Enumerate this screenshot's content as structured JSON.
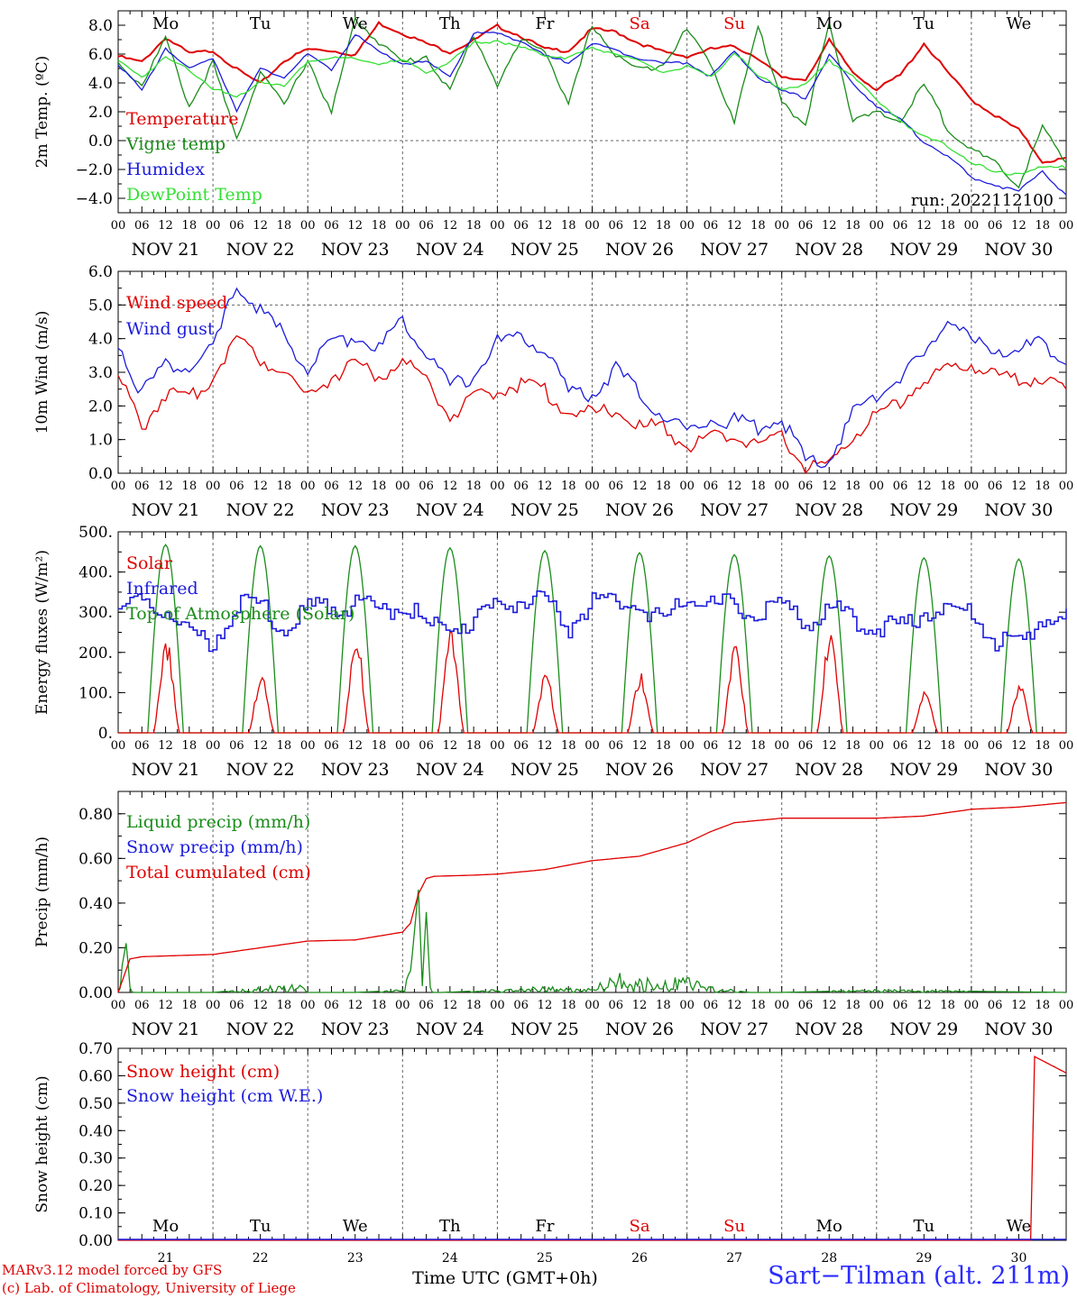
{
  "run_label": "run: 2022112100",
  "days": [
    "NOV 21",
    "NOV 22",
    "NOV 23",
    "NOV 24",
    "NOV 25",
    "NOV 26",
    "NOV 27",
    "NOV 28",
    "NOV 29",
    "NOV 30"
  ],
  "weekdays": [
    {
      "name": "Mo",
      "weekend": false
    },
    {
      "name": "Tu",
      "weekend": false
    },
    {
      "name": "We",
      "weekend": false
    },
    {
      "name": "Th",
      "weekend": false
    },
    {
      "name": "Fr",
      "weekend": false
    },
    {
      "name": "Sa",
      "weekend": true
    },
    {
      "name": "Su",
      "weekend": true
    },
    {
      "name": "Mo",
      "weekend": false
    },
    {
      "name": "Tu",
      "weekend": false
    },
    {
      "name": "We",
      "weekend": false
    }
  ],
  "day_numbers": [
    "21",
    "22",
    "23",
    "24",
    "25",
    "26",
    "27",
    "28",
    "29",
    "30"
  ],
  "hour_ticks": [
    "00",
    "06",
    "12",
    "18"
  ],
  "x_axis_title": "Time UTC (GMT+0h)",
  "credit_line1": "MARv3.12 model forced by GFS",
  "credit_line2": "(c) Lab. of Climatology, University of Liege",
  "station": "Sart−Tilman (alt. 211m)",
  "colors": {
    "red": "#e00000",
    "green": "#1a8c1a",
    "blue": "#1c1cdc",
    "lightgreen": "#33e033",
    "weekend": "#e00000"
  },
  "chart_data": [
    {
      "type": "line",
      "ylabel": "2m Temp. (ºC)",
      "ylim": [
        -5,
        9
      ],
      "yticks": [
        "−4.0",
        "−2.0",
        "0.0",
        "2.0",
        "4.0",
        "6.0",
        "8.0"
      ],
      "ytick_values": [
        -4,
        -2,
        0,
        2,
        4,
        6,
        8
      ],
      "reference_line": 0,
      "x_hours": [
        0,
        6,
        12,
        18,
        24,
        30,
        36,
        42,
        48,
        54,
        60,
        66,
        72,
        78,
        84,
        90,
        96,
        102,
        108,
        114,
        120,
        126,
        132,
        138,
        144,
        150,
        156,
        162,
        168,
        174,
        180,
        186,
        192,
        198,
        204,
        210,
        216,
        222,
        228,
        234,
        240
      ],
      "series": [
        {
          "name": "Temperature",
          "color": "red",
          "values": [
            5.9,
            5.5,
            7.2,
            6.1,
            6.3,
            5.0,
            4.0,
            5.6,
            6.4,
            6.3,
            6.0,
            8.2,
            7.5,
            6.8,
            6.2,
            7.0,
            8.0,
            7.3,
            6.4,
            6.3,
            7.8,
            7.6,
            6.8,
            6.2,
            5.9,
            6.4,
            6.6,
            5.8,
            4.4,
            4.3,
            7.0,
            4.8,
            3.6,
            4.6,
            6.8,
            4.8,
            2.9,
            1.8,
            0.8,
            -1.4,
            -1.2
          ]
        },
        {
          "name": "Vigne temp",
          "color": "green",
          "values": [
            5.5,
            4.0,
            7.2,
            2.5,
            5.5,
            0.2,
            5.0,
            2.5,
            5.8,
            2.0,
            8.5,
            7.0,
            5.5,
            6.0,
            3.5,
            7.5,
            4.0,
            7.0,
            6.5,
            2.5,
            8.2,
            6.0,
            5.0,
            5.5,
            7.8,
            5.5,
            1.5,
            8.0,
            3.0,
            1.0,
            8.5,
            1.5,
            2.0,
            1.5,
            4.0,
            1.0,
            -0.5,
            -1.5,
            -3.0,
            1.0,
            -1.4
          ]
        },
        {
          "name": "Humidex",
          "color": "blue",
          "values": [
            5.4,
            3.5,
            6.5,
            5.0,
            5.8,
            2.2,
            5.0,
            4.5,
            6.0,
            5.0,
            7.4,
            6.2,
            5.4,
            5.5,
            4.5,
            7.5,
            7.5,
            7.0,
            5.9,
            5.5,
            6.8,
            6.3,
            5.8,
            5.4,
            5.5,
            4.5,
            6.2,
            4.5,
            3.5,
            3.0,
            6.0,
            4.0,
            2.5,
            1.5,
            0.0,
            -1.0,
            -2.5,
            -3.0,
            -3.5,
            -2.0,
            -3.8
          ]
        },
        {
          "name": "DewPoint Temp",
          "color": "lightgreen",
          "values": [
            5.6,
            4.5,
            5.8,
            5.0,
            3.7,
            3.0,
            4.2,
            3.8,
            5.6,
            5.8,
            5.7,
            5.4,
            5.6,
            4.8,
            5.5,
            6.8,
            7.0,
            6.5,
            6.0,
            5.8,
            6.5,
            6.1,
            5.5,
            4.8,
            5.2,
            4.4,
            6.2,
            4.5,
            3.7,
            3.9,
            5.6,
            4.6,
            2.8,
            1.5,
            0.3,
            -0.3,
            -1.4,
            -2.2,
            -2.2,
            -1.8,
            -1.8
          ]
        }
      ]
    },
    {
      "type": "line",
      "ylabel": "10m Wind (m/s)",
      "ylim": [
        0,
        6
      ],
      "yticks": [
        "0.0",
        "1.0",
        "2.0",
        "3.0",
        "4.0",
        "5.0",
        "6.0"
      ],
      "ytick_values": [
        0,
        1,
        2,
        3,
        4,
        5,
        6
      ],
      "reference_line": 5,
      "x_hours": [
        0,
        6,
        12,
        18,
        24,
        30,
        36,
        42,
        48,
        54,
        60,
        66,
        72,
        78,
        84,
        90,
        96,
        102,
        108,
        114,
        120,
        126,
        132,
        138,
        144,
        150,
        156,
        162,
        168,
        174,
        180,
        186,
        192,
        198,
        204,
        210,
        216,
        222,
        228,
        234,
        240
      ],
      "series": [
        {
          "name": "Wind speed",
          "color": "red",
          "values": [
            3.0,
            1.5,
            2.5,
            2.3,
            3.0,
            4.2,
            3.5,
            3.2,
            2.4,
            3.0,
            3.4,
            3.0,
            3.4,
            3.0,
            1.8,
            2.3,
            2.6,
            2.8,
            2.6,
            1.9,
            1.9,
            2.0,
            1.5,
            1.5,
            0.9,
            1.2,
            1.2,
            1.0,
            1.2,
            0.3,
            0.3,
            1.3,
            1.8,
            2.3,
            2.9,
            3.2,
            3.4,
            3.0,
            2.9,
            3.0,
            2.6
          ]
        },
        {
          "name": "Wind gust",
          "color": "blue",
          "values": [
            4.0,
            2.5,
            3.4,
            3.2,
            3.8,
            5.7,
            5.0,
            4.2,
            3.2,
            4.0,
            4.2,
            3.8,
            4.7,
            3.8,
            2.7,
            3.0,
            4.0,
            4.2,
            3.8,
            2.5,
            2.5,
            3.2,
            2.5,
            1.8,
            1.4,
            1.7,
            1.7,
            1.5,
            1.7,
            0.5,
            0.5,
            1.9,
            2.4,
            3.0,
            3.6,
            4.8,
            4.0,
            3.8,
            3.8,
            4.0,
            3.4
          ]
        }
      ]
    },
    {
      "type": "line",
      "ylabel": "Energy fluxes (W/m²)",
      "ylim": [
        0,
        500
      ],
      "yticks": [
        "0.",
        "100.",
        "200.",
        "300.",
        "400.",
        "500."
      ],
      "ytick_values": [
        0,
        100,
        200,
        300,
        400,
        500
      ],
      "solar_peaks": [
        235,
        145,
        250,
        265,
        150,
        150,
        230,
        260,
        110,
        125
      ],
      "toa_peaks": [
        468,
        465,
        465,
        460,
        453,
        448,
        443,
        440,
        435,
        432
      ],
      "daylight_hours": [
        7.5,
        16.5
      ],
      "series": [
        {
          "name": "Solar",
          "color": "red",
          "values": []
        },
        {
          "name": "Infrared",
          "color": "blue",
          "x_hours": [
            0,
            6,
            12,
            18,
            24,
            30,
            36,
            42,
            48,
            54,
            60,
            66,
            72,
            78,
            84,
            90,
            96,
            102,
            108,
            114,
            120,
            126,
            132,
            138,
            144,
            150,
            156,
            162,
            168,
            174,
            180,
            186,
            192,
            198,
            204,
            210,
            216,
            222,
            228,
            234,
            240
          ],
          "values": [
            330,
            330,
            320,
            255,
            245,
            330,
            330,
            260,
            325,
            335,
            330,
            320,
            335,
            280,
            270,
            300,
            330,
            345,
            335,
            280,
            345,
            340,
            330,
            300,
            345,
            335,
            330,
            300,
            335,
            285,
            320,
            300,
            280,
            275,
            318,
            315,
            310,
            240,
            230,
            305,
            295
          ]
        },
        {
          "name": "Top of Atmosphere (Solar)",
          "color": "green",
          "values": []
        }
      ]
    },
    {
      "type": "line",
      "ylabel": "Precip (mm/h)",
      "ylim": [
        0,
        0.9
      ],
      "yticks": [
        "0.00",
        "0.20",
        "0.40",
        "0.60",
        "0.80"
      ],
      "ytick_values": [
        0,
        0.2,
        0.4,
        0.6,
        0.8
      ],
      "series": [
        {
          "name": "Liquid precip (mm/h)",
          "color": "green",
          "x_hours": [
            0,
            1,
            2,
            3,
            4,
            6,
            12,
            24,
            36,
            46,
            48,
            60,
            72,
            74,
            76,
            77,
            78,
            79,
            80,
            82,
            96,
            108,
            118,
            130,
            136,
            140,
            144,
            150,
            160,
            168,
            192,
            240
          ],
          "values": [
            0.05,
            0.12,
            0.22,
            0.05,
            0.0,
            0.0,
            0.0,
            0.0,
            0.02,
            0.03,
            0.0,
            0.0,
            0.01,
            0.08,
            0.46,
            0.05,
            0.36,
            0.02,
            0.0,
            0.0,
            0.01,
            0.02,
            0.01,
            0.08,
            0.03,
            0.05,
            0.05,
            0.02,
            0.0,
            0.0,
            0.01,
            0.0
          ]
        },
        {
          "name": "Snow precip (mm/h)",
          "color": "blue",
          "values": []
        },
        {
          "name": "Total cumulated (cm)",
          "color": "red",
          "x_hours": [
            0,
            3,
            6,
            24,
            36,
            48,
            60,
            72,
            74,
            76,
            78,
            80,
            90,
            96,
            108,
            120,
            132,
            144,
            150,
            156,
            168,
            180,
            192,
            204,
            216,
            228,
            240
          ],
          "values": [
            0.0,
            0.15,
            0.16,
            0.17,
            0.2,
            0.23,
            0.235,
            0.27,
            0.31,
            0.44,
            0.51,
            0.52,
            0.525,
            0.53,
            0.55,
            0.59,
            0.61,
            0.67,
            0.72,
            0.76,
            0.78,
            0.78,
            0.78,
            0.79,
            0.82,
            0.83,
            0.85
          ]
        }
      ]
    },
    {
      "type": "line",
      "ylabel": "Snow height (cm)",
      "ylim": [
        0,
        0.7
      ],
      "yticks": [
        "0.00",
        "0.10",
        "0.20",
        "0.30",
        "0.40",
        "0.50",
        "0.60",
        "0.70"
      ],
      "ytick_values": [
        0,
        0.1,
        0.2,
        0.3,
        0.4,
        0.5,
        0.6,
        0.7
      ],
      "series": [
        {
          "name": "Snow height (cm)",
          "color": "red",
          "x_hours": [
            0,
            231,
            232,
            240
          ],
          "values": [
            0,
            0,
            0.67,
            0.61
          ]
        },
        {
          "name": "Snow height (cm W.E.)",
          "color": "blue",
          "values": []
        }
      ]
    }
  ]
}
